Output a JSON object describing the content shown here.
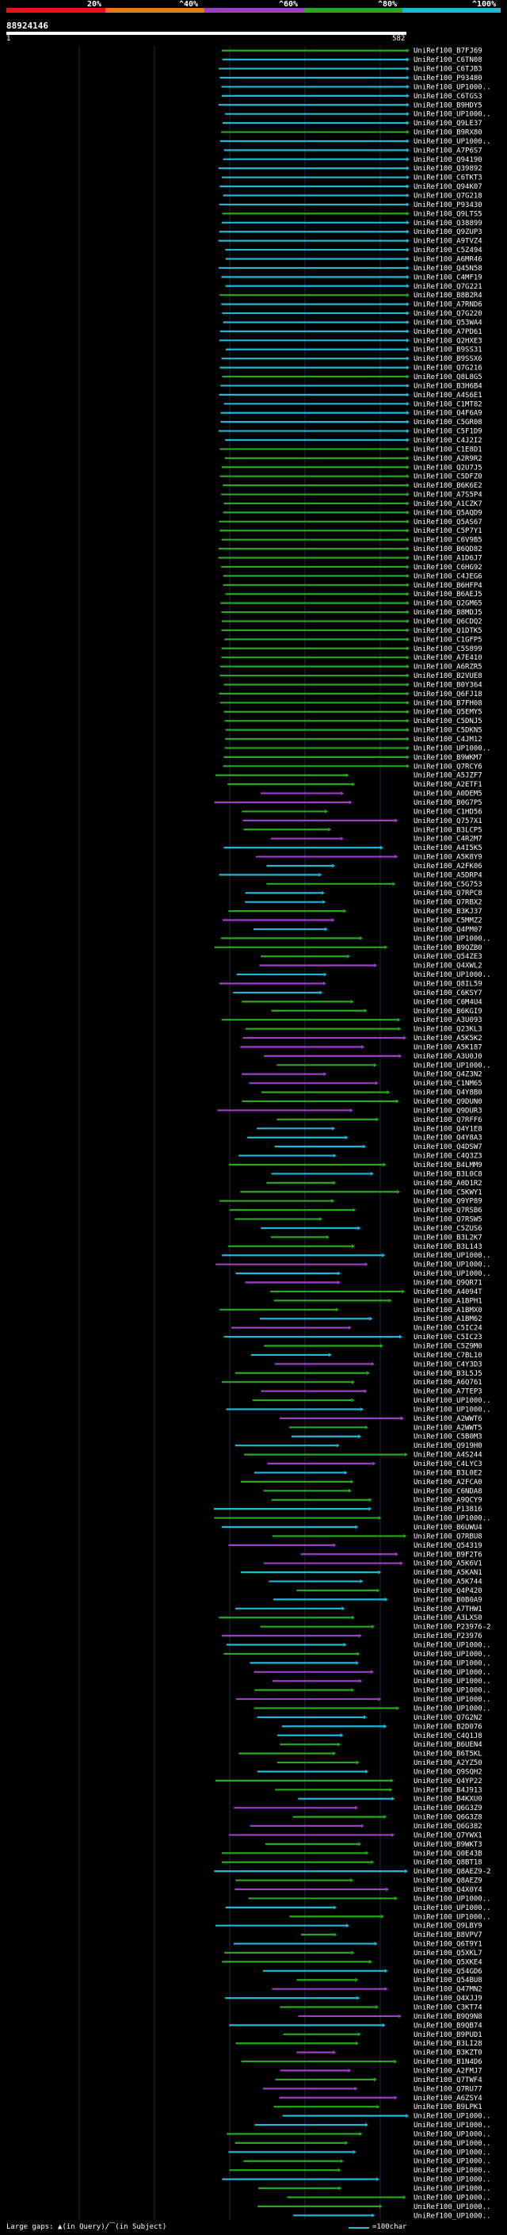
{
  "legend": {
    "labels": [
      "20%",
      "^40%",
      "^60%",
      "^80%",
      "^100%"
    ],
    "colors": [
      "#e8121b",
      "#e87a12",
      "#9c3ec6",
      "#28a81f",
      "#1fb7d8"
    ]
  },
  "query": {
    "id": "88924146",
    "start": "1",
    "end": "582"
  },
  "hit_labels": [
    "UniRef100_B7FJ69",
    "UniRef100_C6TN08",
    "UniRef100_C6TJB3",
    "UniRef100_P93480",
    "UniRef100_UP1000..",
    "UniRef100_C6TGS3",
    "UniRef100_B9HDY5",
    "UniRef100_UP1000..",
    "UniRef100_Q9LE37",
    "UniRef100_B9RX80",
    "UniRef100_UP1000..",
    "UniRef100_A7P6S7",
    "UniRef100_Q94190",
    "UniRef100_Q39892",
    "UniRef100_C6TKT3",
    "UniRef100_Q94K07",
    "UniRef100_Q7G218",
    "UniRef100_P93430",
    "UniRef100_Q9LTS5",
    "UniRef100_Q38899",
    "UniRef100_Q9ZUP3",
    "UniRef100_A9TVZ4",
    "UniRef100_C5Z494",
    "UniRef100_A6MR46",
    "UniRef100_Q45N58",
    "UniRef100_C4MF19",
    "UniRef100_Q7G221",
    "UniRef100_B8B2R4",
    "UniRef100_A7RND6",
    "UniRef100_Q7G220",
    "UniRef100_Q53WA4",
    "UniRef100_A7PD61",
    "UniRef100_Q2HXE3",
    "UniRef100_B9SS31",
    "UniRef100_B9SSX6",
    "UniRef100_Q7G216",
    "UniRef100_Q8L8G5",
    "UniRef100_B3H6B4",
    "UniRef100_A4S6E1",
    "UniRef100_C1MT82",
    "UniRef100_Q4F6A9",
    "UniRef100_C5GR08",
    "UniRef100_C5F1D9",
    "UniRef100_C4J2I2",
    "UniRef100_C1E8D1",
    "UniRef100_A2R9R2",
    "UniRef100_Q2U7J5",
    "UniRef100_C5DFZ0",
    "UniRef100_B6K6E2",
    "UniRef100_A7S5P4",
    "UniRef100_A1CZK7",
    "UniRef100_Q5AQD9",
    "UniRef100_Q5AS67",
    "UniRef100_C5P7Y1",
    "UniRef100_C6V9B5",
    "UniRef100_B6QD82",
    "UniRef100_A1D6J7",
    "UniRef100_C6HG92",
    "UniRef100_C4JEG6",
    "UniRef100_B6HFP4",
    "UniRef100_B6AEJ5",
    "UniRef100_Q2GM65",
    "UniRef100_B8MDJ5",
    "UniRef100_Q6CDQ2",
    "UniRef100_Q1DTK5",
    "UniRef100_C1GFP5",
    "UniRef100_C5S899",
    "UniRef100_A7E410",
    "UniRef100_A6RZR5",
    "UniRef100_B2VUE8",
    "UniRef100_B0Y364",
    "UniRef100_Q6FJ18",
    "UniRef100_B7FH08",
    "UniRef100_Q5EMY5",
    "UniRef100_C5DNJ5",
    "UniRef100_C5DKN5",
    "UniRef100_C4JM12",
    "UniRef100_UP1000..",
    "UniRef100_B9WKM7",
    "UniRef100_Q7RCY6",
    "UniRef100_A5JZF7",
    "UniRef100_A2ETF1",
    "UniRef100_A0DEM5",
    "UniRef100_B0G7P5",
    "UniRef100_C1HD56",
    "UniRef100_Q757X1",
    "UniRef100_B3LCP5",
    "UniRef100_C4R2M7",
    "UniRef100_A4I5K5",
    "UniRef100_A5K8Y9",
    "UniRef100_A2FK06",
    "UniRef100_A5DRP4",
    "UniRef100_C5G753",
    "UniRef100_Q7RPC8",
    "UniRef100_Q7RBX2",
    "UniRef100_B3KJ37",
    "UniRef100_C5MMZ2",
    "UniRef100_Q4PM07",
    "UniRef100_UP1000..",
    "UniRef100_B9QZB0",
    "UniRef100_Q54ZE3",
    "UniRef100_Q4XWL2",
    "UniRef100_UP1000..",
    "UniRef100_Q8IL59",
    "UniRef100_C6KSY7",
    "UniRef100_C6M4U4",
    "UniRef100_B6KGI9",
    "UniRef100_A3U093",
    "UniRef100_Q23KL3",
    "UniRef100_A5K5K2",
    "UniRef100_A5K187",
    "UniRef100_A3U0J0",
    "UniRef100_UP1000..",
    "UniRef100_Q4Z3N2",
    "UniRef100_C1NM65",
    "UniRef100_Q4Y8B0",
    "UniRef100_Q9DUN0",
    "UniRef100_Q9DUR3",
    "UniRef100_Q7RFF6",
    "UniRef100_Q4Y1E8",
    "UniRef100_Q4Y8A3",
    "UniRef100_Q4DSW7",
    "UniRef100_C4Q3Z3",
    "UniRef100_B4LMM9",
    "UniRef100_B3L0C8",
    "UniRef100_A0D1R2",
    "UniRef100_C5KWY1",
    "UniRef100_Q9YP89",
    "UniRef100_Q7RSB6",
    "UniRef100_Q7RSW5",
    "UniRef100_C5ZUS6",
    "UniRef100_B3L2K7",
    "UniRef100_B3L143",
    "UniRef100_UP1000..",
    "UniRef100_UP1000..",
    "UniRef100_UP1000..",
    "UniRef100_Q9QR71",
    "UniRef100_A4094T",
    "UniRef100_A1BPH1",
    "UniRef100_A1BMX0",
    "UniRef100_A1BM62",
    "UniRef100_C5IC24",
    "UniRef100_C5IC23",
    "UniRef100_C5Z9M0",
    "UniRef100_C7BL10",
    "UniRef100_C4Y3D3",
    "UniRef100_B3L5J5",
    "UniRef100_A6Q761",
    "UniRef100_A7TEP3",
    "UniRef100_UP1000..",
    "UniRef100_UP1000..",
    "UniRef100_A2WWT6",
    "UniRef100_A2WWT5",
    "UniRef100_C5B0M3",
    "UniRef100_Q919H0",
    "UniRef100_A4S244",
    "UniRef100_C4LYC3",
    "UniRef100_B3L0E2",
    "UniRef100_A2FCA0",
    "UniRef100_C6NDA8",
    "UniRef100_A9QCY9",
    "UniRef100_P13816",
    "UniRef100_UP1000..",
    "UniRef100_B6UWU4",
    "UniRef100_Q7RBU8",
    "UniRef100_Q54319",
    "UniRef100_B9F2T6",
    "UniRef100_A5K6V1",
    "UniRef100_A5KAN1",
    "UniRef100_A5K744",
    "UniRef100_Q4P420",
    "UniRef100_B0B0A9",
    "UniRef100_A7THW1",
    "UniRef100_A3LXS0",
    "UniRef100_P23976-2",
    "UniRef100_P23976",
    "UniRef100_UP1000..",
    "UniRef100_UP1000..",
    "UniRef100_UP1000..",
    "UniRef100_UP1000..",
    "UniRef100_UP1000..",
    "UniRef100_UP1000..",
    "UniRef100_UP1000..",
    "UniRef100_UP1000..",
    "UniRef100_Q7G2N2",
    "UniRef100_B2D076",
    "UniRef100_C4Q1J8",
    "UniRef100_B6UEN4",
    "UniRef100_B6T5KL",
    "UniRef100_A2YZ50",
    "UniRef100_Q9SQH2",
    "UniRef100_Q4YP22",
    "UniRef100_B4J913",
    "UniRef100_B4KXU0",
    "UniRef100_Q6G3Z9",
    "UniRef100_Q6G3Z8",
    "UniRef100_Q6G382",
    "UniRef100_Q7YWX1",
    "UniRef100_B9WKT3",
    "UniRef100_Q0E43B",
    "UniRef100_Q8BT18",
    "UniRef100_Q8AEZ9-2",
    "UniRef100_Q8AEZ9",
    "UniRef100_Q4X0Y4",
    "UniRef100_UP1000..",
    "UniRef100_UP1000..",
    "UniRef100_UP1000..",
    "UniRef100_Q9LBY9",
    "UniRef100_B8VPV7",
    "UniRef100_Q6T9Y1",
    "UniRef100_Q5XKL7",
    "UniRef100_Q5XKE4",
    "UniRef100_Q54GD6",
    "UniRef100_Q54BU8",
    "UniRef100_Q47MN2",
    "UniRef100_Q4XJJ9",
    "UniRef100_C3KT74",
    "UniRef100_B9Q9N8",
    "UniRef100_B9QB74",
    "UniRef100_B9PUD1",
    "UniRef100_B3LI28",
    "UniRef100_B3KZT0",
    "UniRef100_B1N4D6",
    "UniRef100_A2FMJ7",
    "UniRef100_Q7TWF4",
    "UniRef100_Q7RU77",
    "UniRef100_A6ZSY4",
    "UniRef100_B9LPK1",
    "UniRef100_UP1000..",
    "UniRef100_UP1000..",
    "UniRef100_UP1000..",
    "UniRef100_UP1000..",
    "UniRef100_UP1000..",
    "UniRef100_UP1000..",
    "UniRef100_UP1000..",
    "UniRef100_UP1000..",
    "UniRef100_UP1000..",
    "UniRef100_UP1000..",
    "UniRef100_UP1000..",
    "UniRef100_UP1000.."
  ],
  "footer": {
    "large_gaps": "Large gaps: ▲(in Query)/⁀(in Subject)",
    "scale": "=100char"
  }
}
